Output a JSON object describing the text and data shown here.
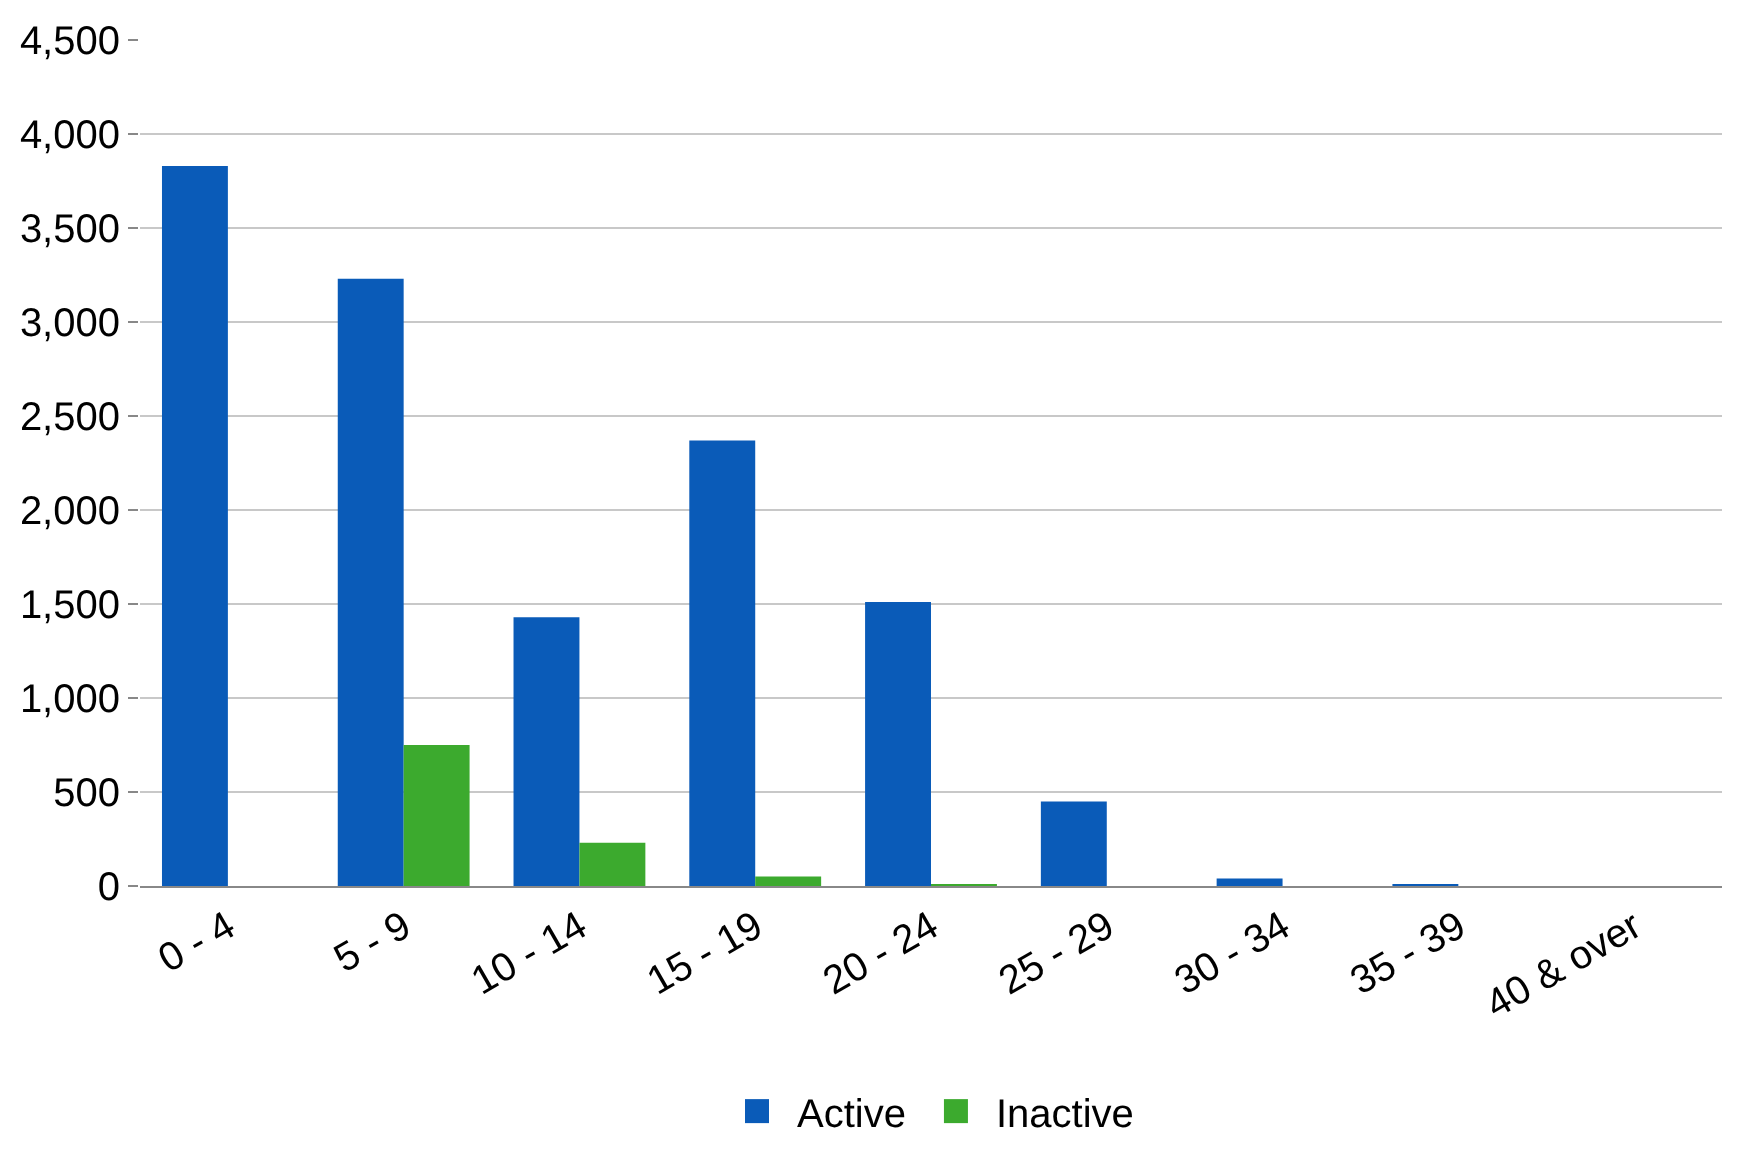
{
  "chart_data": {
    "type": "bar",
    "categories": [
      "0 - 4",
      "5 - 9",
      "10 - 14",
      "15 - 19",
      "20 - 24",
      "25 - 29",
      "30 - 34",
      "35 - 39",
      "40 & over"
    ],
    "series": [
      {
        "name": "Active",
        "color": "#0a5bb8",
        "values": [
          3830,
          3230,
          1430,
          2370,
          1510,
          450,
          40,
          10,
          0
        ]
      },
      {
        "name": "Inactive",
        "color": "#3caa2e",
        "values": [
          0,
          750,
          230,
          50,
          10,
          0,
          0,
          0,
          0
        ]
      }
    ],
    "ylim": [
      0,
      4500
    ],
    "yticks": [
      {
        "value": 0,
        "label": "0"
      },
      {
        "value": 500,
        "label": "500"
      },
      {
        "value": 1000,
        "label": "1,000"
      },
      {
        "value": 1500,
        "label": "1,500"
      },
      {
        "value": 2000,
        "label": "2,000"
      },
      {
        "value": 2500,
        "label": "2,500"
      },
      {
        "value": 3000,
        "label": "3,000"
      },
      {
        "value": 3500,
        "label": "3,500"
      },
      {
        "value": 4000,
        "label": "4,000"
      },
      {
        "value": 4500,
        "label": "4,500"
      }
    ],
    "grid": "y",
    "legend": "bottom"
  }
}
